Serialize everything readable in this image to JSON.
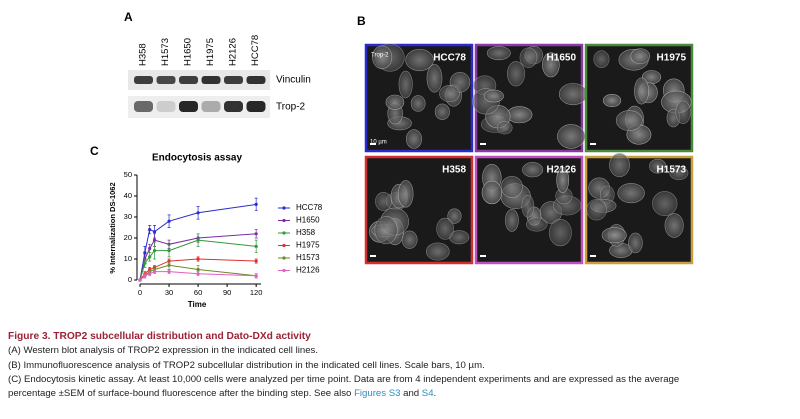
{
  "panels": {
    "a": {
      "label": "A",
      "lanes": [
        "H358",
        "H1573",
        "H1650",
        "H1975",
        "H2126",
        "HCC78"
      ],
      "rows": [
        "Vinculin",
        "Trop-2"
      ]
    },
    "b": {
      "label": "B",
      "stain": "Trop-2",
      "scale": "10 µm",
      "images": [
        "HCC78",
        "H1650",
        "H1975",
        "H358",
        "H2126",
        "H1573"
      ]
    },
    "c": {
      "label": "C"
    }
  },
  "chart_data": {
    "type": "line",
    "title": "Endocytosis assay",
    "xlabel": "Time",
    "ylabel": "% Internalization DS-1062",
    "x": [
      0,
      5,
      10,
      15,
      30,
      60,
      120
    ],
    "xlim": [
      0,
      125
    ],
    "xticks": [
      0,
      30,
      60,
      90,
      120
    ],
    "ylim": [
      0,
      50
    ],
    "yticks": [
      0,
      10,
      20,
      30,
      40,
      50
    ],
    "series": [
      {
        "name": "HCC78",
        "color": "#2b2bd0",
        "values": [
          0,
          13,
          24,
          23,
          28,
          32,
          36
        ],
        "errors": [
          0,
          3,
          2,
          3,
          3,
          3,
          3
        ]
      },
      {
        "name": "H1650",
        "color": "#7a2ca8",
        "values": [
          0,
          10,
          15,
          19,
          17,
          20,
          22
        ],
        "errors": [
          0,
          2,
          2,
          3,
          2,
          2,
          2
        ]
      },
      {
        "name": "H358",
        "color": "#2e9a3a",
        "values": [
          0,
          8,
          11,
          14,
          14,
          19,
          16
        ],
        "errors": [
          0,
          2,
          2,
          4,
          3,
          3,
          3
        ]
      },
      {
        "name": "H1975",
        "color": "#e03030",
        "values": [
          0,
          3,
          5,
          6,
          9,
          10,
          9
        ],
        "errors": [
          0,
          1,
          1,
          1,
          1,
          1,
          1
        ]
      },
      {
        "name": "H1573",
        "color": "#6a8a2a",
        "values": [
          0,
          2,
          4,
          5,
          7,
          5,
          2
        ],
        "errors": [
          0,
          1,
          1,
          2,
          2,
          2,
          1
        ]
      },
      {
        "name": "H2126",
        "color": "#e060c0",
        "values": [
          0,
          2,
          3,
          4,
          4,
          3,
          2
        ],
        "errors": [
          0,
          1,
          1,
          1,
          1,
          1,
          1
        ]
      }
    ]
  },
  "caption": {
    "title": "Figure 3. TROP2 subcellular distribution and Dato-DXd activity",
    "lines": [
      "(A) Western blot analysis of TROP2 expression in the indicated cell lines.",
      "(B) Immunofluorescence analysis of TROP2 subcellular distribution in the indicated cell lines. Scale bars, 10 µm.",
      "(C) Endocytosis kinetic assay. At least 10,000 cells were analyzed per time point. Data are from 4 independent experiments and are expressed as the average"
    ],
    "last_line": "percentage ±SEM of surface-bound fluorescence after the binding step. See also ",
    "link1": "Figures S3",
    "and": " and ",
    "link2": "S4",
    "end": "."
  }
}
